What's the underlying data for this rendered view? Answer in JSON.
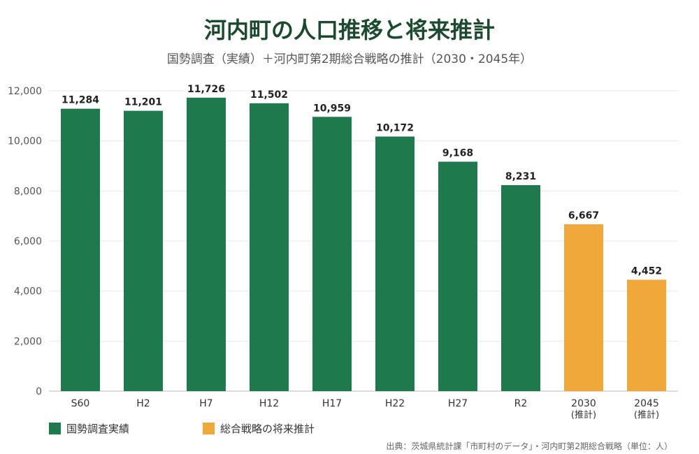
{
  "title": "河内町の人口推移と将来推計",
  "subtitle": "国勢調査（実績）＋河内町第2期総合戦略の推計（2030・2045年）",
  "source": "出典：茨城県統計課「市町村のデータ」・河内町第2期総合戦略（単位：人）",
  "colors": {
    "actual": "#1e7a4c",
    "projection": "#f0a83a",
    "title": "#1c4a2e"
  },
  "legend": [
    {
      "label": "国勢調査実績",
      "color": "#1e7a4c"
    },
    {
      "label": "総合戦略の将来推計",
      "color": "#f0a83a"
    }
  ],
  "chart_data": {
    "type": "bar",
    "categories": [
      "S60",
      "H2",
      "H7",
      "H12",
      "H17",
      "H22",
      "H27",
      "R2",
      "2030\n(推計)",
      "2045\n(推計)"
    ],
    "series": [
      {
        "name": "国勢調査実績",
        "values": [
          11284,
          11201,
          11726,
          11502,
          10959,
          10172,
          9168,
          8231,
          null,
          null
        ]
      },
      {
        "name": "総合戦略の将来推計",
        "values": [
          null,
          null,
          null,
          null,
          null,
          null,
          null,
          null,
          6667,
          4452
        ]
      }
    ],
    "ylim": [
      0,
      12000
    ],
    "yticks": [
      0,
      2000,
      4000,
      6000,
      8000,
      10000,
      12000
    ],
    "grid": true,
    "legend_position": "bottom-left"
  }
}
